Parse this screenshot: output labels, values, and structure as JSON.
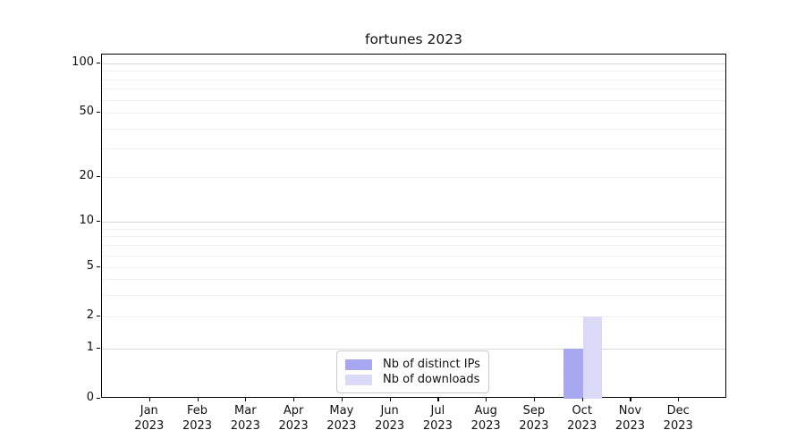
{
  "title": "fortunes 2023",
  "chart_data": {
    "type": "bar",
    "title": "fortunes 2023",
    "categories": [
      {
        "month": "Jan",
        "year": "2023"
      },
      {
        "month": "Feb",
        "year": "2023"
      },
      {
        "month": "Mar",
        "year": "2023"
      },
      {
        "month": "Apr",
        "year": "2023"
      },
      {
        "month": "May",
        "year": "2023"
      },
      {
        "month": "Jun",
        "year": "2023"
      },
      {
        "month": "Jul",
        "year": "2023"
      },
      {
        "month": "Aug",
        "year": "2023"
      },
      {
        "month": "Sep",
        "year": "2023"
      },
      {
        "month": "Oct",
        "year": "2023"
      },
      {
        "month": "Nov",
        "year": "2023"
      },
      {
        "month": "Dec",
        "year": "2023"
      }
    ],
    "series": [
      {
        "name": "Nb of distinct IPs",
        "color": "#a8a8f0",
        "values": [
          0,
          0,
          0,
          0,
          0,
          0,
          0,
          0,
          0,
          1,
          0,
          0
        ]
      },
      {
        "name": "Nb of downloads",
        "color": "#dadaf8",
        "values": [
          0,
          0,
          0,
          0,
          0,
          0,
          0,
          0,
          0,
          2,
          0,
          0
        ]
      }
    ],
    "xlabel": "",
    "ylabel": "",
    "yscale": "symlog",
    "y_ticks": [
      0,
      1,
      2,
      5,
      10,
      20,
      50,
      100
    ],
    "ylim": [
      0,
      100
    ],
    "grid": "horizontal",
    "legend_position": "lower center"
  }
}
